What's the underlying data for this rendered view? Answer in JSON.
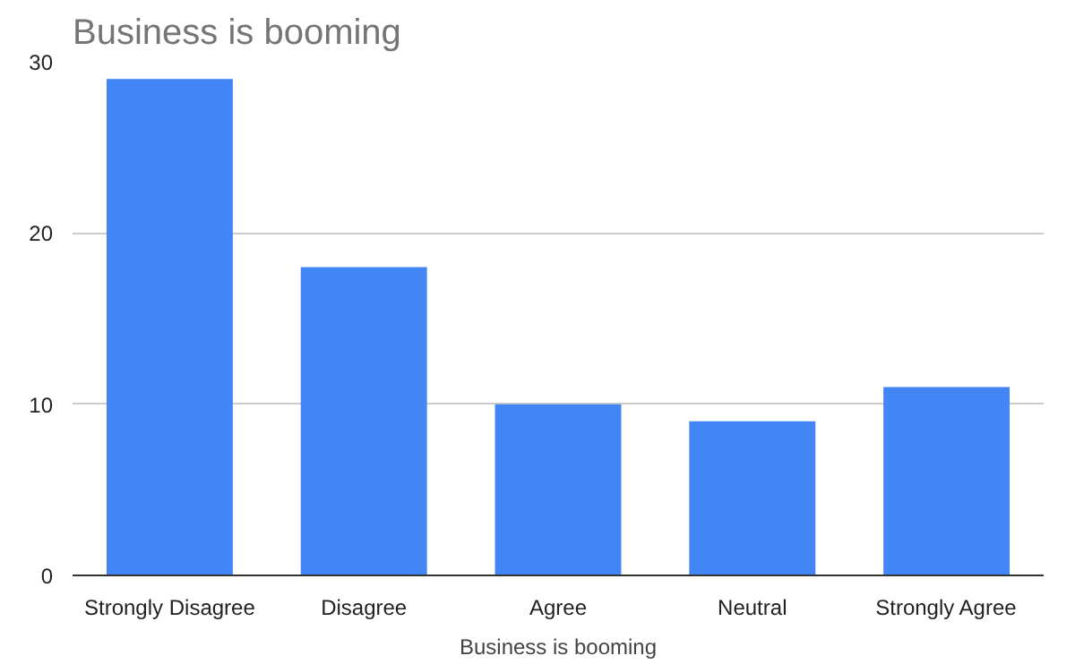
{
  "chart_data": {
    "type": "bar",
    "title": "Business is booming",
    "xlabel": "Business is booming",
    "categories": [
      "Strongly Disagree",
      "Disagree",
      "Agree",
      "Neutral",
      "Strongly Agree"
    ],
    "values": [
      29,
      18,
      10,
      9,
      11
    ],
    "color": "#4285f4",
    "ylim": [
      0,
      30
    ],
    "yticks": [
      0,
      10,
      20,
      30
    ],
    "grid": "y"
  }
}
